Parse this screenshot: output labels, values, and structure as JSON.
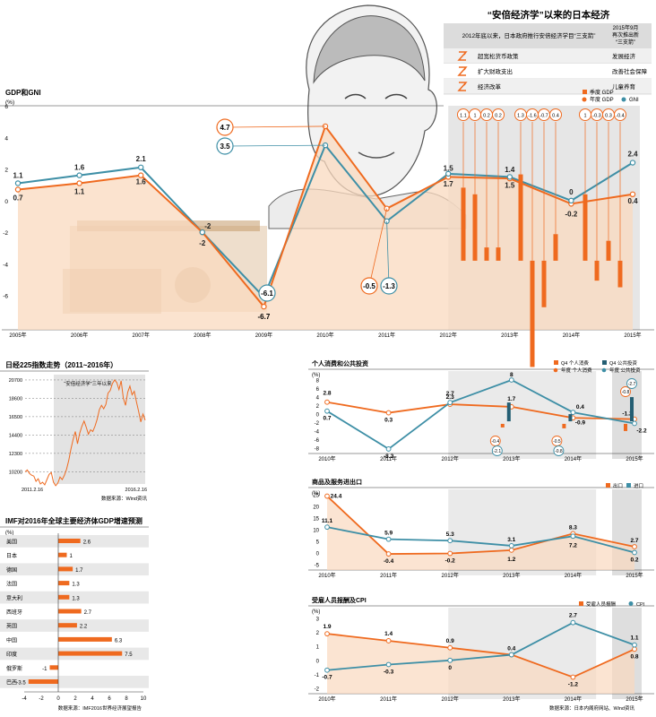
{
  "colors": {
    "orange": "#ef6a1f",
    "teal": "#3e8fa6",
    "light_orange": "#f9d9bf",
    "band_gray": "#dcdcdc",
    "ink": "#222222"
  },
  "title": "“安倍经济学”以来的日本经济",
  "policy_table": {
    "col1_header": "2012年底以来，日本政府推行安倍经济学目“三支箭”",
    "col2_header": "2015年9月 再次推出新 “三支箭”",
    "rows": [
      {
        "icon": "arrow-icon",
        "policy": "超宽松货币政策",
        "new": "发展经济"
      },
      {
        "icon": "arrow-icon",
        "policy": "扩大财政支出",
        "new": "改善社会保障"
      },
      {
        "icon": "arrow-icon",
        "policy": "经济改革",
        "new": "儿童养育"
      }
    ]
  },
  "chart_data": [
    {
      "id": "gdp_gni",
      "type": "line",
      "title": "GDP和GNI",
      "ylabel": "(%)",
      "ylim": [
        -8,
        6
      ],
      "yticks": [
        -6,
        -4,
        -2,
        0,
        2,
        4,
        6
      ],
      "categories": [
        "2005年",
        "2006年",
        "2007年",
        "2008年",
        "2009年",
        "2010年",
        "2011年",
        "2012年",
        "2013年",
        "2014年",
        "2015年"
      ],
      "series": [
        {
          "name": "年度 GDP",
          "values": [
            0.7,
            1.1,
            1.6,
            -2.0,
            -6.7,
            4.7,
            -0.5,
            1.5,
            1.4,
            -0.2,
            0.4
          ]
        },
        {
          "name": "GNI",
          "values": [
            1.1,
            1.6,
            2.1,
            -2.0,
            -6.1,
            3.5,
            -1.3,
            1.7,
            1.5,
            0.0,
            2.4
          ]
        }
      ],
      "quarterly": {
        "name": "季度 GDP",
        "values": [
          1.1,
          1.0,
          0.2,
          0.2,
          1.3,
          -1.6,
          -0.7,
          0.4,
          1.0,
          -0.3,
          0.3,
          -0.4
        ]
      },
      "legend": [
        "季度 GDP",
        "年度 GDP",
        "GNI"
      ]
    },
    {
      "id": "nikkei",
      "type": "line",
      "title": "日经225指数走势（2011~2016年）",
      "annotation": "“安倍经济学”三年以来",
      "yticks": [
        10200,
        12300,
        14400,
        16500,
        18600,
        20700
      ],
      "ylim": [
        8800,
        20900
      ],
      "x_start": "2011.2.16",
      "x_end": "2016.2.16",
      "source": "数据来源：Wind资讯"
    },
    {
      "id": "imf",
      "type": "bar",
      "title": "IMF对2016年全球主要经济体GDP增速预测",
      "ylabel": "(%)",
      "categories": [
        "美国",
        "日本",
        "德国",
        "法国",
        "意大利",
        "西班牙",
        "英国",
        "中国",
        "印度",
        "俄罗斯",
        "巴西"
      ],
      "values": [
        2.6,
        1.0,
        1.7,
        1.3,
        1.3,
        2.7,
        2.2,
        6.3,
        7.5,
        -1.0,
        -3.5
      ],
      "xlim": [
        -4,
        10
      ],
      "xticks": [
        -4,
        -2,
        0,
        2,
        4,
        6,
        8,
        10
      ],
      "source": "数据来源：IMF2016世界经济展望报告"
    },
    {
      "id": "consumption",
      "type": "line",
      "title": "个人消费和公共投资",
      "ylabel": "(%)",
      "ylim": [
        -8,
        8
      ],
      "yticks": [
        -8,
        -6,
        -4,
        -2,
        0,
        2,
        4,
        6,
        8
      ],
      "categories": [
        "2010年",
        "2011年",
        "2012年",
        "2013年",
        "2014年",
        "2015年"
      ],
      "series": [
        {
          "name": "年度 个人消费",
          "values": [
            2.8,
            0.3,
            2.3,
            1.7,
            -0.9,
            -1.2
          ]
        },
        {
          "name": "年度 公共投资",
          "values": [
            0.7,
            -8.2,
            2.7,
            8.0,
            0.4,
            -2.2
          ]
        }
      ],
      "quarterly": [
        {
          "year": "2013年",
          "consumption": -0.4,
          "investment": -2.1
        },
        {
          "year": "2014年",
          "consumption": -0.5,
          "investment": -0.8
        },
        {
          "year": "2015年",
          "consumption": -0.8,
          "investment": -2.7
        }
      ],
      "legend": [
        "Q4 个人消费",
        "Q4 公共投资",
        "年度 个人消费",
        "年度 公共投资"
      ]
    },
    {
      "id": "trade",
      "type": "line",
      "title": "商品及服务进出口",
      "ylabel": "(%)",
      "ylim": [
        -5,
        25
      ],
      "yticks": [
        -5,
        0,
        5,
        10,
        15,
        20,
        25
      ],
      "categories": [
        "2010年",
        "2011年",
        "2012年",
        "2013年",
        "2014年",
        "2015年"
      ],
      "series": [
        {
          "name": "出口",
          "values": [
            24.4,
            -0.4,
            -0.2,
            1.2,
            8.3,
            2.7
          ]
        },
        {
          "name": "进口",
          "values": [
            11.1,
            5.9,
            5.3,
            3.1,
            7.2,
            0.2
          ]
        }
      ],
      "legend": [
        "出口",
        "进口"
      ]
    },
    {
      "id": "employment_cpi",
      "type": "line",
      "title": "受雇人员报酬及CPI",
      "ylabel": "(%)",
      "ylim": [
        -2,
        3
      ],
      "yticks": [
        -2,
        -1,
        0,
        1,
        2,
        3
      ],
      "categories": [
        "2010年",
        "2011年",
        "2012年",
        "2013年",
        "2014年",
        "2015年"
      ],
      "series": [
        {
          "name": "受雇人员报酬",
          "values": [
            1.9,
            1.4,
            0.9,
            0.4,
            -1.2,
            0.8
          ]
        },
        {
          "name": "CPI",
          "values": [
            -0.7,
            -0.3,
            0.0,
            0.4,
            2.7,
            1.1
          ]
        }
      ],
      "legend": [
        "受雇人员报酬",
        "CPI"
      ],
      "source": "数据来源：日本内阁府网站、Wind资讯"
    }
  ]
}
